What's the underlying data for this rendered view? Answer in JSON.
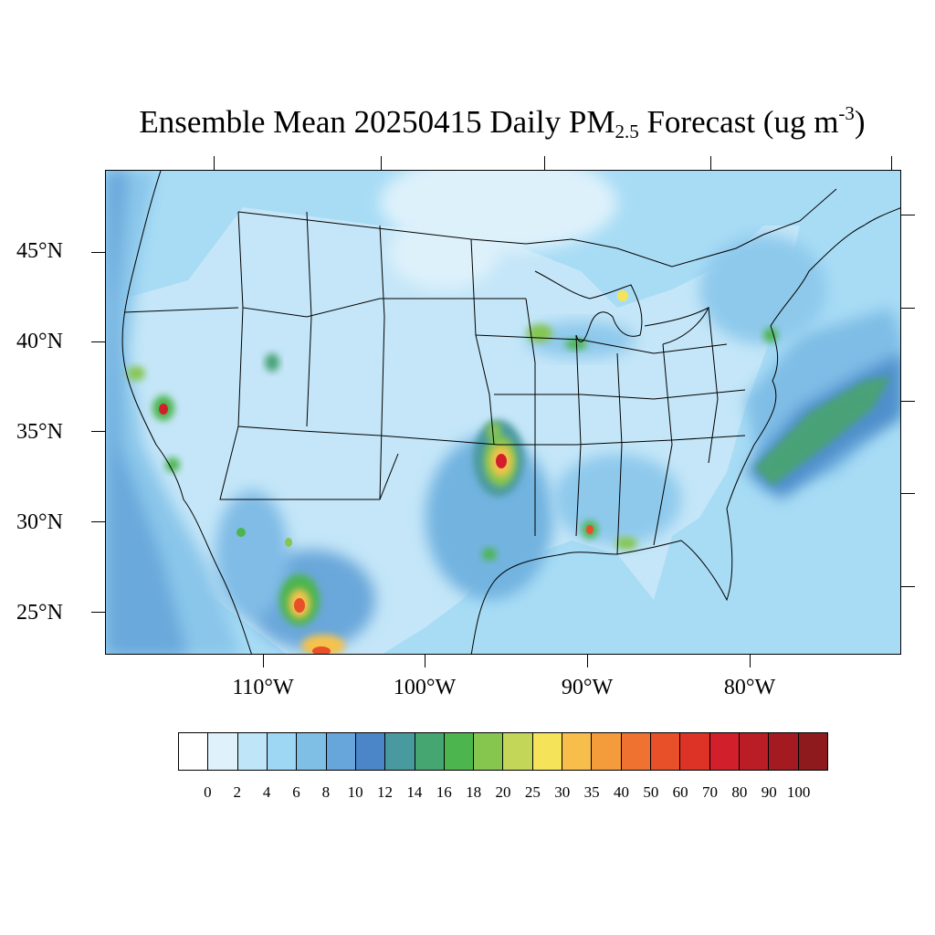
{
  "title": {
    "main": "Ensemble Mean 20250415 Daily PM",
    "subscript": "2.5",
    "after": " Forecast (ug m",
    "superscript": "-3",
    "close": ")"
  },
  "map": {
    "lat_labels": [
      "45°N",
      "40°N",
      "35°N",
      "30°N",
      "25°N"
    ],
    "lon_labels": [
      "110°W",
      "100°W",
      "90°W",
      "80°W"
    ]
  },
  "colorbar": {
    "labels": [
      "0",
      "2",
      "4",
      "6",
      "8",
      "10",
      "12",
      "14",
      "16",
      "18",
      "20",
      "25",
      "30",
      "35",
      "40",
      "50",
      "60",
      "70",
      "80",
      "90",
      "100"
    ],
    "colors": [
      "#ffffff",
      "#dff2fb",
      "#bfe6f8",
      "#9ed7f3",
      "#80bfe5",
      "#66a6db",
      "#4a86c8",
      "#489a9e",
      "#46a672",
      "#4cb54d",
      "#86c64f",
      "#c4d657",
      "#f5e45a",
      "#f7be4c",
      "#f49b3b",
      "#f07230",
      "#e75029",
      "#dd3326",
      "#d11f2b",
      "#ba1d26",
      "#a31b21",
      "#8e1a1e"
    ]
  }
}
